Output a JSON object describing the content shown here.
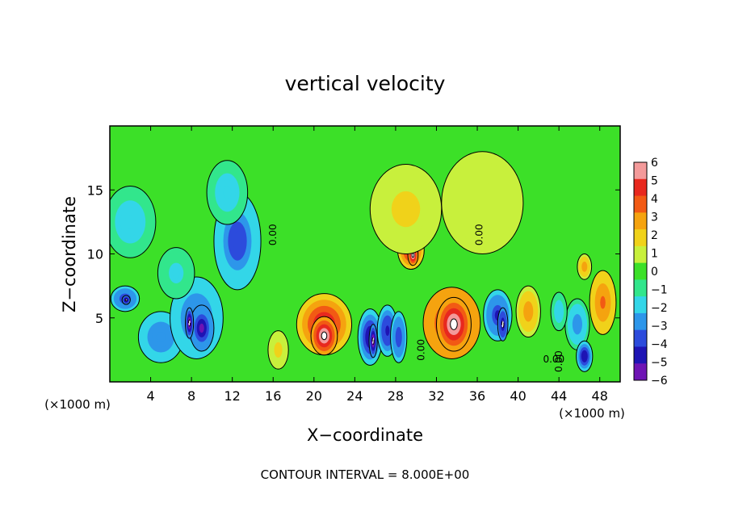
{
  "chart_data": {
    "type": "heatmap",
    "title": "vertical velocity",
    "xlabel": "X−coordinate",
    "ylabel": "Z−coordinate",
    "x_unit_left": "(×1000 m)",
    "x_unit_right": "(×1000 m)",
    "footer": "CONTOUR INTERVAL = 8.000E+00",
    "xlim": [
      0,
      50
    ],
    "ylim": [
      0,
      20
    ],
    "x_ticks": [
      4,
      8,
      12,
      16,
      20,
      24,
      28,
      32,
      36,
      40,
      44,
      48
    ],
    "y_ticks": [
      5,
      10,
      15
    ],
    "colorbar": {
      "levels": [
        6,
        5,
        4,
        3,
        2,
        1,
        0,
        -1,
        -2,
        -3,
        -4,
        -5,
        -6
      ],
      "labels": [
        "6",
        "5",
        "4",
        "3",
        "2",
        "1",
        "0",
        "−1",
        "−2",
        "−3",
        "−4",
        "−5",
        "−6"
      ],
      "colors": [
        "#f39a9a",
        "#e8281e",
        "#f25a14",
        "#f5a30f",
        "#f0d21a",
        "#c8f03c",
        "#3ce028",
        "#32e68c",
        "#33d6e8",
        "#2d96ea",
        "#2c4bdc",
        "#1e14b4",
        "#6e14b4"
      ]
    },
    "background_value": 0.3,
    "contour_labels": [
      "0.00",
      "0.00",
      "0.00",
      "0.00",
      "0.00"
    ],
    "cells": [
      {
        "x": 2.0,
        "z": 12.5,
        "sx": 2.5,
        "sz": 2.8,
        "v": -2.5
      },
      {
        "x": 1.5,
        "z": 6.5,
        "sx": 1.4,
        "sz": 1.0,
        "v": -4.6
      },
      {
        "x": 1.6,
        "z": 6.4,
        "sx": 0.4,
        "sz": 0.35,
        "v": -6.3
      },
      {
        "x": 5.0,
        "z": 3.5,
        "sx": 2.2,
        "sz": 2.0,
        "v": -3.5
      },
      {
        "x": 8.5,
        "z": 5.0,
        "sx": 2.6,
        "sz": 3.2,
        "v": -3.5
      },
      {
        "x": 9.0,
        "z": 4.2,
        "sx": 1.2,
        "sz": 1.8,
        "v": -6.0
      },
      {
        "x": 7.8,
        "z": 4.6,
        "sx": 0.4,
        "sz": 1.2,
        "v": -6.4
      },
      {
        "x": 12.5,
        "z": 11.0,
        "sx": 2.3,
        "sz": 3.8,
        "v": -4.3
      },
      {
        "x": 11.5,
        "z": 14.8,
        "sx": 2.0,
        "sz": 2.5,
        "v": -2.5
      },
      {
        "x": 6.5,
        "z": 8.5,
        "sx": 1.8,
        "sz": 2.0,
        "v": -1.8
      },
      {
        "x": 16.5,
        "z": 2.5,
        "sx": 1.0,
        "sz": 1.5,
        "v": 1.8
      },
      {
        "x": 21.0,
        "z": 4.5,
        "sx": 2.7,
        "sz": 2.4,
        "v": 5.6
      },
      {
        "x": 21.0,
        "z": 3.6,
        "sx": 1.3,
        "sz": 1.5,
        "v": 6.4
      },
      {
        "x": 25.5,
        "z": 3.5,
        "sx": 1.2,
        "sz": 2.2,
        "v": -5.5
      },
      {
        "x": 25.8,
        "z": 3.2,
        "sx": 0.4,
        "sz": 1.3,
        "v": -6.4
      },
      {
        "x": 27.2,
        "z": 4.0,
        "sx": 1.0,
        "sz": 2.0,
        "v": -5.0
      },
      {
        "x": 28.3,
        "z": 3.5,
        "sx": 0.8,
        "sz": 2.0,
        "v": -4.5
      },
      {
        "x": 29.5,
        "z": 10.3,
        "sx": 1.3,
        "sz": 1.5,
        "v": 5.4
      },
      {
        "x": 29.7,
        "z": 9.9,
        "sx": 0.5,
        "sz": 0.8,
        "v": 6.4
      },
      {
        "x": 29.0,
        "z": 13.5,
        "sx": 3.5,
        "sz": 3.5,
        "v": 2.0
      },
      {
        "x": 33.5,
        "z": 4.6,
        "sx": 2.8,
        "sz": 2.8,
        "v": 5.8
      },
      {
        "x": 33.7,
        "z": 4.5,
        "sx": 1.7,
        "sz": 2.1,
        "v": 6.5
      },
      {
        "x": 38.0,
        "z": 5.2,
        "sx": 1.4,
        "sz": 2.0,
        "v": -4.6
      },
      {
        "x": 38.5,
        "z": 4.5,
        "sx": 0.5,
        "sz": 1.3,
        "v": -6.2
      },
      {
        "x": 36.5,
        "z": 14.0,
        "sx": 4.0,
        "sz": 4.0,
        "v": 1.2
      },
      {
        "x": 41.0,
        "z": 5.5,
        "sx": 1.2,
        "sz": 2.0,
        "v": 3.2
      },
      {
        "x": 45.8,
        "z": 4.5,
        "sx": 1.2,
        "sz": 2.0,
        "v": -3.4
      },
      {
        "x": 46.5,
        "z": 2.0,
        "sx": 0.8,
        "sz": 1.2,
        "v": -5.5
      },
      {
        "x": 48.3,
        "z": 6.2,
        "sx": 1.3,
        "sz": 2.5,
        "v": 4.0
      },
      {
        "x": 46.5,
        "z": 9.0,
        "sx": 0.7,
        "sz": 1.0,
        "v": 3.0
      },
      {
        "x": 44.0,
        "z": 5.5,
        "sx": 0.8,
        "sz": 1.5,
        "v": -2.2
      }
    ]
  }
}
